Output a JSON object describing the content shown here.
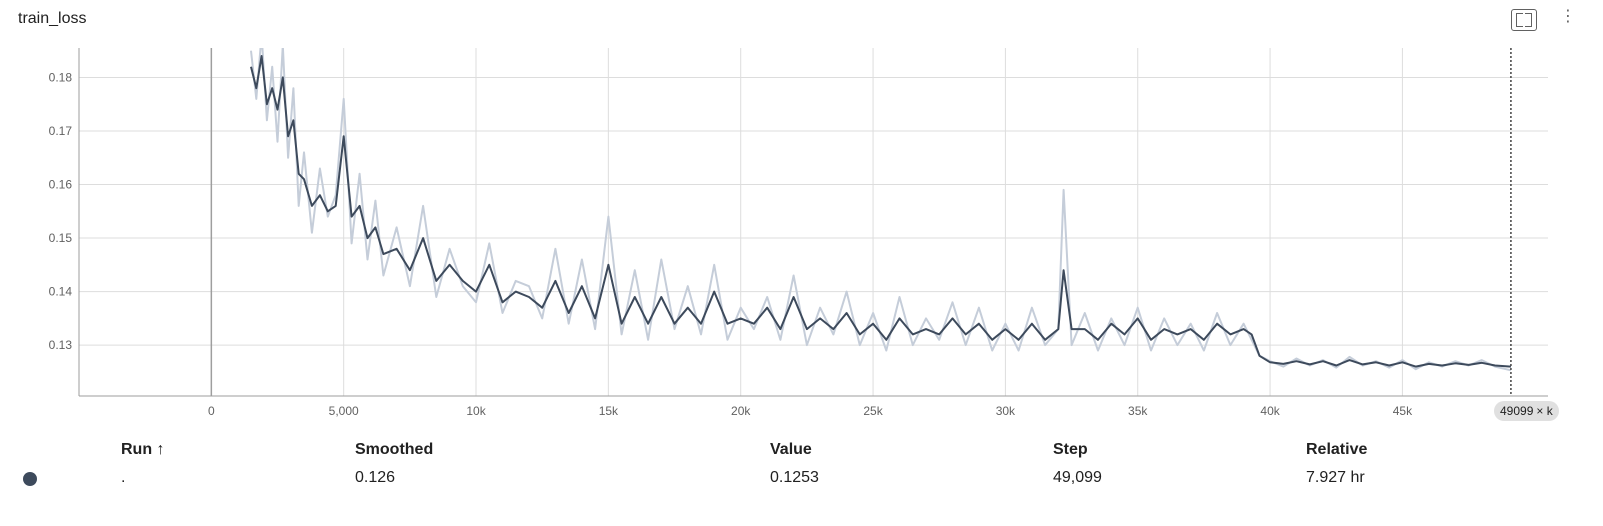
{
  "card": {
    "title": "train_loss",
    "fullscreen_icon": "fullscreen-icon",
    "more_icon": "more-icon",
    "more_glyph": "⋮"
  },
  "chart_data": {
    "type": "line",
    "title": "train_loss",
    "xlim": [
      -5000,
      50500
    ],
    "ylim": [
      0.1205,
      0.1855
    ],
    "x_ticks": [
      0,
      5000,
      10000,
      15000,
      20000,
      25000,
      30000,
      35000,
      40000,
      45000
    ],
    "x_tick_labels": [
      "0",
      "5,000",
      "10k",
      "15k",
      "20k",
      "25k",
      "30k",
      "35k",
      "40k",
      "45k"
    ],
    "y_ticks": [
      0.13,
      0.14,
      0.15,
      0.16,
      0.17,
      0.18
    ],
    "y_tick_labels": [
      "0.13",
      "0.14",
      "0.15",
      "0.16",
      "0.17",
      "0.18"
    ],
    "grid": true,
    "hover_step": 49099,
    "series": [
      {
        "role": "raw",
        "color": "#c5cdd9",
        "x": [
          1500,
          1700,
          1900,
          2100,
          2300,
          2500,
          2700,
          2900,
          3100,
          3300,
          3500,
          3800,
          4100,
          4400,
          4700,
          5000,
          5300,
          5600,
          5900,
          6200,
          6500,
          7000,
          7500,
          8000,
          8500,
          9000,
          9500,
          10000,
          10500,
          11000,
          11500,
          12000,
          12500,
          13000,
          13500,
          14000,
          14500,
          15000,
          15500,
          16000,
          16500,
          17000,
          17500,
          18000,
          18500,
          19000,
          19500,
          20000,
          20500,
          21000,
          21500,
          22000,
          22500,
          23000,
          23500,
          24000,
          24500,
          25000,
          25500,
          26000,
          26500,
          27000,
          27500,
          28000,
          28500,
          29000,
          29500,
          30000,
          30500,
          31000,
          31500,
          32000,
          32200,
          32500,
          33000,
          33500,
          34000,
          34500,
          35000,
          35500,
          36000,
          36500,
          37000,
          37500,
          38000,
          38500,
          39000,
          39300,
          39600,
          40000,
          40500,
          41000,
          41500,
          42000,
          42500,
          43000,
          43500,
          44000,
          44500,
          45000,
          45500,
          46000,
          46500,
          47000,
          47500,
          48000,
          48500,
          49099
        ],
        "y": [
          0.185,
          0.176,
          0.188,
          0.172,
          0.182,
          0.168,
          0.186,
          0.165,
          0.178,
          0.156,
          0.166,
          0.151,
          0.163,
          0.154,
          0.158,
          0.176,
          0.149,
          0.162,
          0.146,
          0.157,
          0.143,
          0.152,
          0.141,
          0.156,
          0.139,
          0.148,
          0.141,
          0.138,
          0.149,
          0.136,
          0.142,
          0.141,
          0.135,
          0.148,
          0.134,
          0.146,
          0.133,
          0.154,
          0.132,
          0.144,
          0.131,
          0.146,
          0.133,
          0.141,
          0.132,
          0.145,
          0.131,
          0.137,
          0.133,
          0.139,
          0.131,
          0.143,
          0.13,
          0.137,
          0.132,
          0.14,
          0.13,
          0.136,
          0.129,
          0.139,
          0.13,
          0.135,
          0.131,
          0.138,
          0.13,
          0.137,
          0.129,
          0.134,
          0.129,
          0.137,
          0.13,
          0.133,
          0.159,
          0.13,
          0.136,
          0.129,
          0.135,
          0.13,
          0.137,
          0.129,
          0.135,
          0.13,
          0.134,
          0.129,
          0.136,
          0.13,
          0.134,
          0.131,
          0.128,
          0.127,
          0.126,
          0.1275,
          0.1262,
          0.1272,
          0.1258,
          0.1278,
          0.1262,
          0.127,
          0.1258,
          0.1272,
          0.1255,
          0.1268,
          0.126,
          0.127,
          0.1262,
          0.1272,
          0.126,
          0.1253
        ]
      },
      {
        "role": "smoothed",
        "color": "#3d4a5c",
        "x": [
          1500,
          1700,
          1900,
          2100,
          2300,
          2500,
          2700,
          2900,
          3100,
          3300,
          3500,
          3800,
          4100,
          4400,
          4700,
          5000,
          5300,
          5600,
          5900,
          6200,
          6500,
          7000,
          7500,
          8000,
          8500,
          9000,
          9500,
          10000,
          10500,
          11000,
          11500,
          12000,
          12500,
          13000,
          13500,
          14000,
          14500,
          15000,
          15500,
          16000,
          16500,
          17000,
          17500,
          18000,
          18500,
          19000,
          19500,
          20000,
          20500,
          21000,
          21500,
          22000,
          22500,
          23000,
          23500,
          24000,
          24500,
          25000,
          25500,
          26000,
          26500,
          27000,
          27500,
          28000,
          28500,
          29000,
          29500,
          30000,
          30500,
          31000,
          31500,
          32000,
          32200,
          32500,
          33000,
          33500,
          34000,
          34500,
          35000,
          35500,
          36000,
          36500,
          37000,
          37500,
          38000,
          38500,
          39000,
          39300,
          39600,
          40000,
          40500,
          41000,
          41500,
          42000,
          42500,
          43000,
          43500,
          44000,
          44500,
          45000,
          45500,
          46000,
          46500,
          47000,
          47500,
          48000,
          48500,
          49099
        ],
        "y": [
          0.182,
          0.178,
          0.184,
          0.175,
          0.178,
          0.174,
          0.18,
          0.169,
          0.172,
          0.162,
          0.161,
          0.156,
          0.158,
          0.155,
          0.156,
          0.169,
          0.154,
          0.156,
          0.15,
          0.152,
          0.147,
          0.148,
          0.144,
          0.15,
          0.142,
          0.145,
          0.142,
          0.14,
          0.145,
          0.138,
          0.14,
          0.139,
          0.137,
          0.142,
          0.136,
          0.141,
          0.135,
          0.145,
          0.134,
          0.139,
          0.134,
          0.139,
          0.134,
          0.137,
          0.134,
          0.14,
          0.134,
          0.135,
          0.134,
          0.137,
          0.133,
          0.139,
          0.133,
          0.135,
          0.133,
          0.136,
          0.132,
          0.134,
          0.131,
          0.135,
          0.132,
          0.133,
          0.132,
          0.135,
          0.132,
          0.134,
          0.131,
          0.133,
          0.131,
          0.134,
          0.131,
          0.133,
          0.144,
          0.133,
          0.133,
          0.131,
          0.134,
          0.132,
          0.135,
          0.131,
          0.133,
          0.132,
          0.133,
          0.131,
          0.134,
          0.132,
          0.133,
          0.132,
          0.128,
          0.1268,
          0.1265,
          0.127,
          0.1264,
          0.127,
          0.1262,
          0.1272,
          0.1264,
          0.1268,
          0.1262,
          0.1268,
          0.126,
          0.1265,
          0.1262,
          0.1266,
          0.1263,
          0.1267,
          0.1262,
          0.126
        ]
      }
    ]
  },
  "step_badge": {
    "value": "49099",
    "close_glyph": "×",
    "trailing_text": "k"
  },
  "table": {
    "headers": {
      "run": "Run ↑",
      "smoothed": "Smoothed",
      "value": "Value",
      "step": "Step",
      "relative": "Relative"
    },
    "row": {
      "color": "#3d4a5c",
      "run": ".",
      "smoothed": "0.126",
      "value": "0.1253",
      "step": "49,099",
      "relative": "7.927 hr"
    }
  }
}
